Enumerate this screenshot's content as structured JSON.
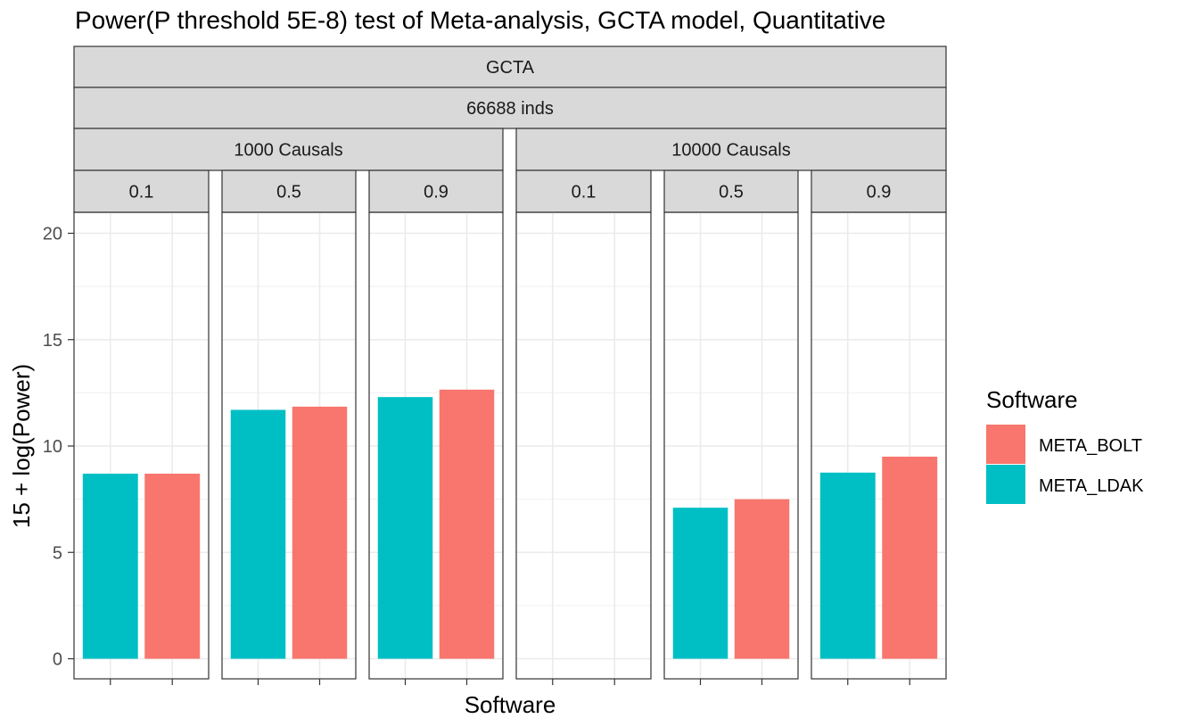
{
  "chart_data": {
    "type": "bar",
    "title": "Power(P threshold 5E-8) test of Meta-analysis, GCTA model, Quantitative",
    "xlabel": "Software",
    "ylabel": "15 + log(Power)",
    "ylim": [
      -1,
      21
    ],
    "yticks": [
      "0",
      "5",
      "10",
      "15",
      "20"
    ],
    "grid": true,
    "facet_strips": {
      "level1": "GCTA",
      "level2": "66688 inds",
      "level3": [
        "1000 Causals",
        "10000 Causals"
      ],
      "level4": [
        "0.1",
        "0.5",
        "0.9",
        "0.1",
        "0.5",
        "0.9"
      ]
    },
    "categories": [
      "META_LDAK",
      "META_BOLT"
    ],
    "panels": [
      {
        "causals": "1000 Causals",
        "h2": "0.1",
        "META_LDAK": 8.7,
        "META_BOLT": 8.7
      },
      {
        "causals": "1000 Causals",
        "h2": "0.5",
        "META_LDAK": 11.7,
        "META_BOLT": 11.85
      },
      {
        "causals": "1000 Causals",
        "h2": "0.9",
        "META_LDAK": 12.3,
        "META_BOLT": 12.65
      },
      {
        "causals": "10000 Causals",
        "h2": "0.1",
        "META_LDAK": null,
        "META_BOLT": null
      },
      {
        "causals": "10000 Causals",
        "h2": "0.5",
        "META_LDAK": 7.1,
        "META_BOLT": 7.5
      },
      {
        "causals": "10000 Causals",
        "h2": "0.9",
        "META_LDAK": 8.75,
        "META_BOLT": 9.5
      }
    ],
    "legend": {
      "title": "Software",
      "position": "right",
      "entries": [
        {
          "name": "META_BOLT",
          "color": "#F8766D"
        },
        {
          "name": "META_LDAK",
          "color": "#00BFC4"
        }
      ]
    }
  }
}
